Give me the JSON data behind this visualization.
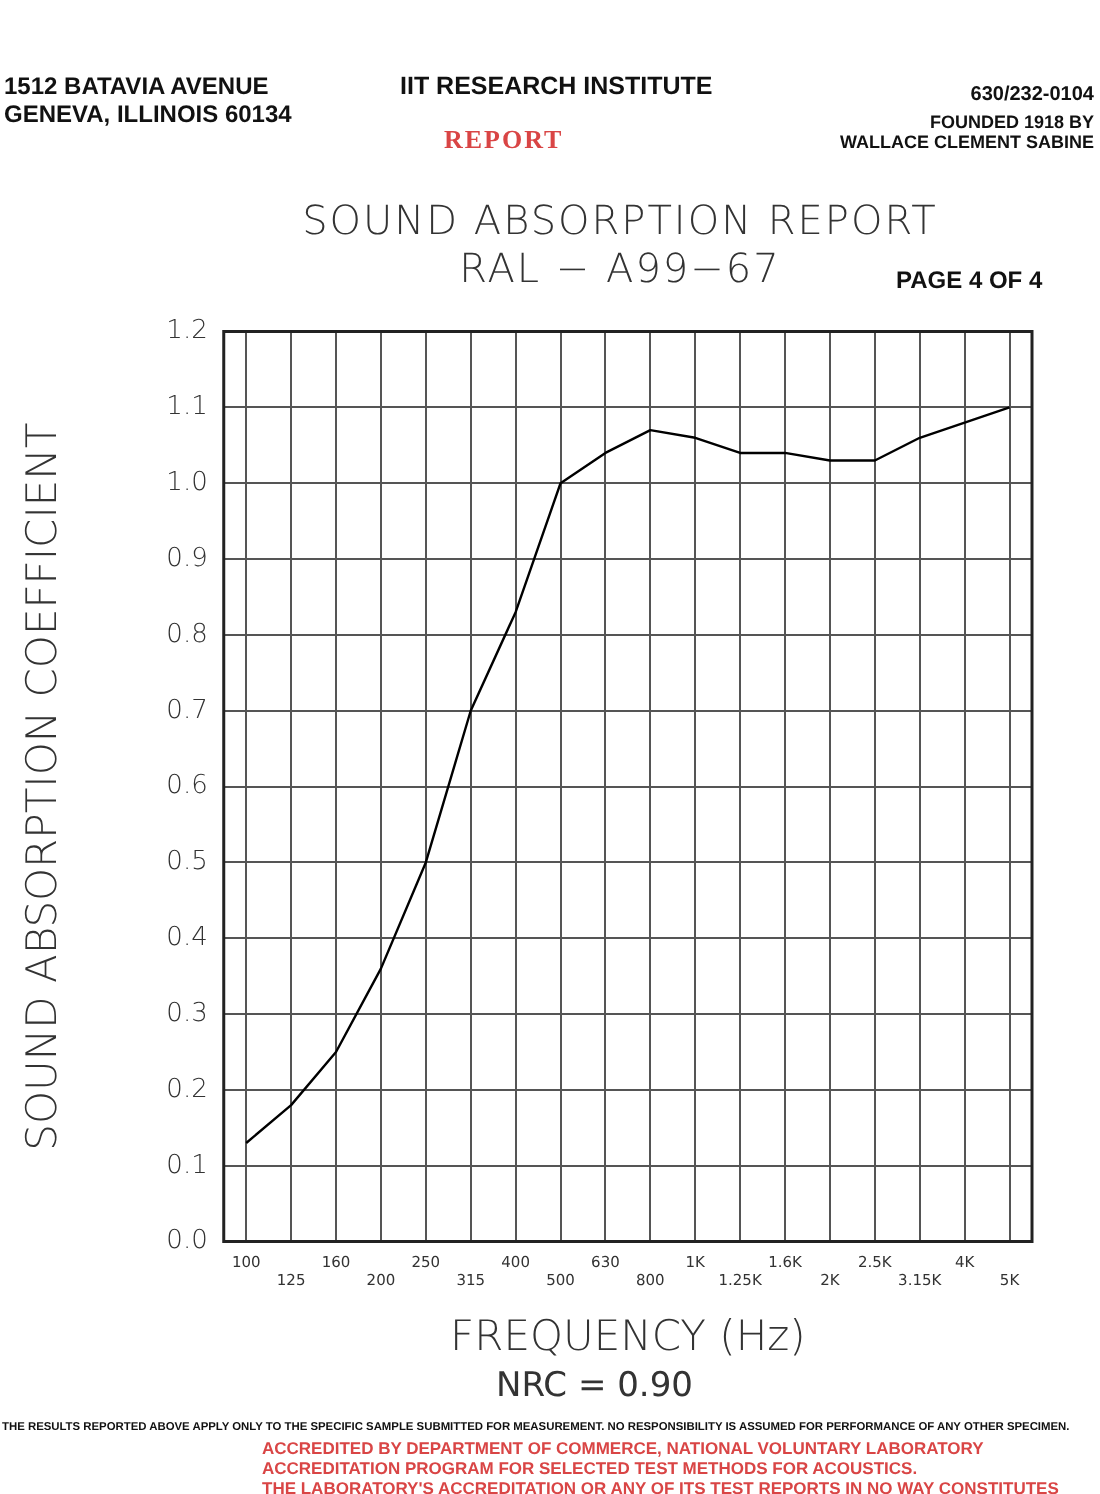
{
  "chart_data": {
    "type": "line",
    "title": "SOUND ABSORPTION REPORT",
    "subtitle": "RAL − A99−67",
    "xlabel": "FREQUENCY (Hz)",
    "ylabel": "SOUND ABSORPTION COEFFICIENT",
    "categories": [
      "100",
      "125",
      "160",
      "200",
      "250",
      "315",
      "400",
      "500",
      "630",
      "800",
      "1K",
      "1.25K",
      "1.6K",
      "2K",
      "2.5K",
      "3.15K",
      "4K",
      "5K"
    ],
    "series": [
      {
        "color": "#000000",
        "values": [
          0.13,
          0.18,
          0.25,
          0.36,
          0.5,
          0.7,
          0.83,
          1.0,
          1.04,
          1.07,
          1.06,
          1.04,
          1.04,
          1.03,
          1.03,
          1.06,
          1.08,
          1.1
        ]
      }
    ],
    "ylim": [
      0,
      1.2
    ],
    "yticks": [
      {
        "value": 0,
        "label": "0.0"
      },
      {
        "value": 0.1,
        "label": "0.1"
      },
      {
        "value": 0.2,
        "label": "0.2"
      },
      {
        "value": 0.3,
        "label": "0.3"
      },
      {
        "value": 0.4,
        "label": "0.4"
      },
      {
        "value": 0.5,
        "label": "0.5"
      },
      {
        "value": 0.6,
        "label": "0.6"
      },
      {
        "value": 0.7,
        "label": "0.7"
      },
      {
        "value": 0.8,
        "label": "0.8"
      },
      {
        "value": 0.9,
        "label": "0.9"
      },
      {
        "value": 1,
        "label": "1.0"
      },
      {
        "value": 1.1,
        "label": "1.1"
      },
      {
        "value": 1.2,
        "label": "1.2"
      }
    ],
    "grid": true,
    "legend": false,
    "marker": "none",
    "line_style": "solid",
    "annotations": [
      "1512 BATAVIA AVENUE",
      "GENEVA, ILLINOIS 60134",
      "IIT RESEARCH INSTITUTE",
      "630/232-0104",
      "FOUNDED 1918 BY",
      "WALLACE CLEMENT SABINE",
      "REPORT",
      "PAGE 4 OF 4",
      "NRC = 0.90",
      "THE RESULTS REPORTED ABOVE APPLY ONLY TO THE SPECIFIC SAMPLE SUBMITTED FOR MEASUREMENT. NO RESPONSIBILITY IS ASSUMED FOR PERFORMANCE OF ANY OTHER SPECIMEN.",
      "ACCREDITED BY DEPARTMENT OF COMMERCE, NATIONAL VOLUNTARY LABORATORY",
      "ACCREDITATION PROGRAM FOR SELECTED TEST METHODS FOR ACOUSTICS.",
      "THE LABORATORY'S ACCREDITATION OR ANY OF ITS TEST REPORTS IN NO WAY CONSTITUTES"
    ]
  }
}
